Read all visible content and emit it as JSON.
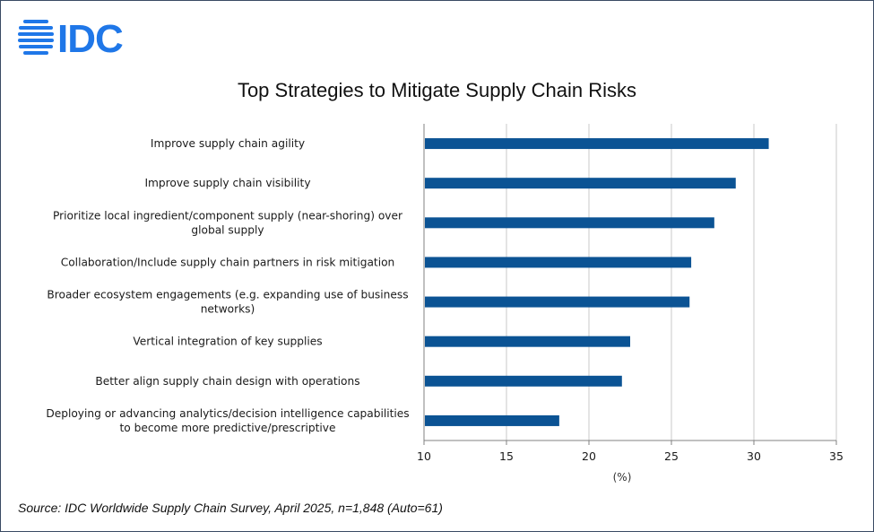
{
  "logo": {
    "text": "IDC",
    "color": "#1f77e8"
  },
  "title": "Top Strategies to Mitigate Supply Chain Risks",
  "source": "Source: IDC Worldwide Supply Chain Survey, April 2025, n=1,848 (Auto=61)",
  "chart_data": {
    "type": "bar",
    "orientation": "horizontal",
    "title": "Top Strategies to Mitigate Supply Chain Risks",
    "xlabel": "(%)",
    "ylabel": "",
    "xlim": [
      10,
      35
    ],
    "xticks": [
      10,
      15,
      20,
      25,
      30,
      35
    ],
    "grid": true,
    "bar_color": "#0b5394",
    "categories": [
      [
        "Improve supply chain agility"
      ],
      [
        "Improve supply chain visibility"
      ],
      [
        "Prioritize local ingredient/component supply (near-shoring) over",
        "global supply"
      ],
      [
        "Collaboration/Include supply chain partners in risk mitigation"
      ],
      [
        "Broader ecosystem engagements (e.g. expanding use of business",
        "networks)"
      ],
      [
        "Vertical integration of key supplies"
      ],
      [
        "Better align supply chain design with operations"
      ],
      [
        "Deploying or advancing analytics/decision intelligence capabilities",
        "to become more predictive/prescriptive"
      ]
    ],
    "values": [
      30.9,
      28.9,
      27.6,
      26.2,
      26.1,
      22.5,
      22.0,
      18.2
    ]
  }
}
